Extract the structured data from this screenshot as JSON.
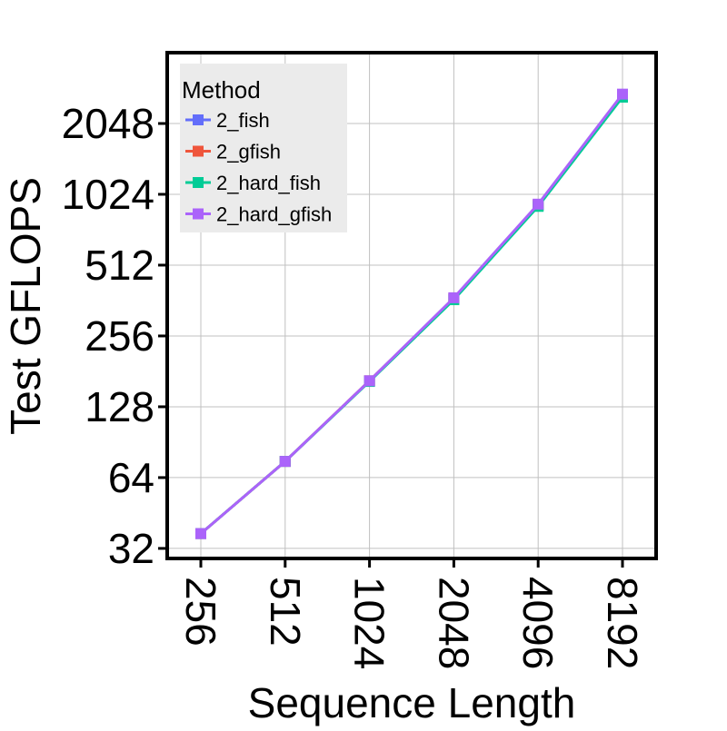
{
  "chart_data": {
    "type": "line",
    "xlabel": "Sequence Length",
    "ylabel": "Test GFLOPS",
    "x_scale": "log2",
    "y_scale": "log2",
    "x": [
      256,
      512,
      1024,
      2048,
      4096,
      8192
    ],
    "x_tick_labels": [
      "256",
      "512",
      "1024",
      "2048",
      "4096",
      "8192"
    ],
    "y_ticks": [
      32,
      64,
      128,
      256,
      512,
      1024,
      2048
    ],
    "y_tick_labels": [
      "32",
      "64",
      "128",
      "256",
      "512",
      "1024",
      "2048"
    ],
    "ylim": [
      29,
      4096
    ],
    "grid": true,
    "legend": {
      "title": "Method",
      "placement": "top-left"
    },
    "series": [
      {
        "name": "2_fish",
        "color": "#636efa",
        "marker": "square",
        "values": [
          37,
          75,
          165,
          370,
          920,
          2700
        ]
      },
      {
        "name": "2_gfish",
        "color": "#ef553b",
        "marker": "square",
        "values": [
          37,
          75,
          165,
          370,
          925,
          2720
        ]
      },
      {
        "name": "2_hard_fish",
        "color": "#00cc96",
        "marker": "square",
        "values": [
          37,
          75,
          164,
          365,
          910,
          2650
        ]
      },
      {
        "name": "2_hard_gfish",
        "color": "#ab63fa",
        "marker": "square",
        "values": [
          37,
          75,
          165,
          372,
          930,
          2730
        ]
      }
    ]
  }
}
